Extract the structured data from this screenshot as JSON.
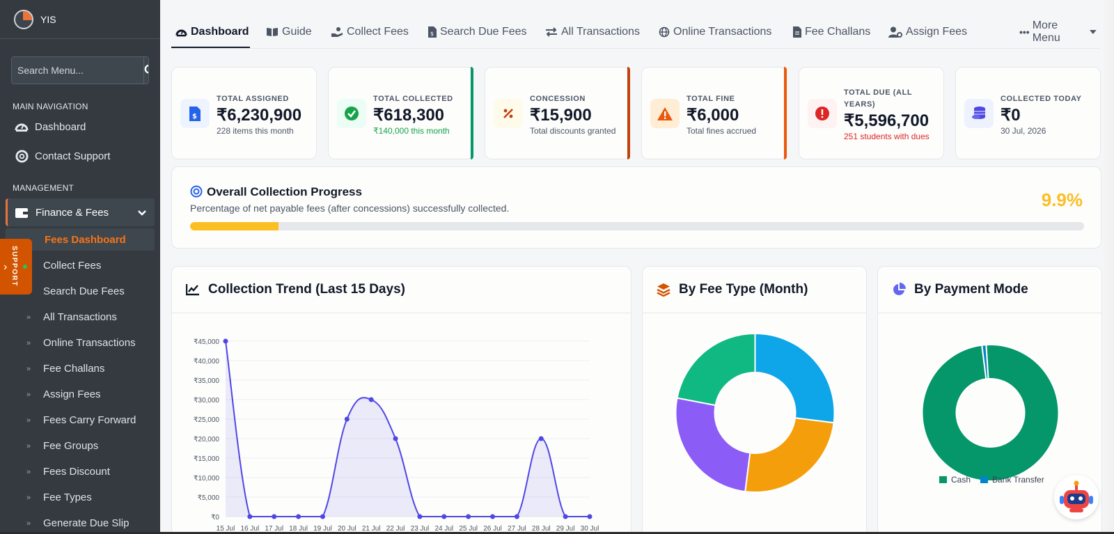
{
  "sidebar": {
    "brand": "YIS",
    "search_placeholder": "Search Menu...",
    "main_header": "MAIN NAVIGATION",
    "main_items": [
      "Dashboard",
      "Contact Support"
    ],
    "management_header": "MANAGEMENT",
    "finance_label": "Finance & Fees",
    "active_sub": "Fees Dashboard",
    "sub_items": [
      "Collect Fees",
      "Search Due Fees",
      "All Transactions",
      "Online Transactions",
      "Fee Challans",
      "Assign Fees",
      "Fees Carry Forward",
      "Fee Groups",
      "Fees Discount",
      "Fee Types",
      "Generate Due Slip"
    ],
    "support_tab": "SUPPORT"
  },
  "topnav": {
    "tabs": [
      "Dashboard",
      "Guide",
      "Collect Fees",
      "Search Due Fees",
      "All Transactions",
      "Online Transactions",
      "Fee Challans",
      "Assign Fees"
    ],
    "more": "More Menu"
  },
  "stats": [
    {
      "label": "TOTAL ASSIGNED",
      "value": "₹6,230,900",
      "sub": "228 items this month",
      "color": "#2563eb"
    },
    {
      "label": "TOTAL COLLECTED",
      "value": "₹618,300",
      "sub": "₹140,000 this month",
      "color": "#16a34a"
    },
    {
      "label": "CONCESSION",
      "value": "₹15,900",
      "sub": "Total discounts granted",
      "color": "#c2410c"
    },
    {
      "label": "TOTAL FINE",
      "value": "₹6,000",
      "sub": "Total fines accrued",
      "color": "#ea580c"
    },
    {
      "label": "TOTAL DUE (ALL YEARS)",
      "value": "₹5,596,700",
      "sub": "251 students with dues",
      "color": "#dc2626"
    },
    {
      "label": "COLLECTED TODAY",
      "value": "₹0",
      "sub": "30 Jul, 2026",
      "color": "#4f46e5"
    }
  ],
  "progress": {
    "title": "Overall Collection Progress",
    "description": "Percentage of net payable fees (after concessions) successfully collected.",
    "percent_label": "9.9%",
    "percent": 9.9
  },
  "panels": {
    "trend_title": "Collection Trend (Last 15 Days)",
    "fee_type_title": "By Fee Type (Month)",
    "payment_title": "By Payment Mode"
  },
  "chart_data": [
    {
      "type": "area",
      "title": "Collection Trend (Last 15 Days)",
      "categories": [
        "15 Jul",
        "16 Jul",
        "17 Jul",
        "18 Jul",
        "19 Jul",
        "20 Jul",
        "21 Jul",
        "22 Jul",
        "23 Jul",
        "24 Jul",
        "25 Jul",
        "26 Jul",
        "27 Jul",
        "28 Jul",
        "29 Jul",
        "30 Jul"
      ],
      "values": [
        45000,
        0,
        0,
        0,
        0,
        25000,
        30000,
        20000,
        0,
        0,
        0,
        0,
        0,
        20000,
        0,
        0
      ],
      "yticks": [
        "₹0",
        "₹5,000",
        "₹10,000",
        "₹15,000",
        "₹20,000",
        "₹25,000",
        "₹30,000",
        "₹35,000",
        "₹40,000",
        "₹45,000"
      ],
      "ylim": [
        0,
        45000
      ],
      "color": "#4f46e5"
    },
    {
      "type": "pie",
      "title": "By Fee Type (Month)",
      "values": [
        27,
        25,
        26,
        22
      ],
      "colors": [
        "#0ea5e9",
        "#f59e0b",
        "#8b5cf6",
        "#10b981"
      ]
    },
    {
      "type": "pie",
      "title": "By Payment Mode",
      "categories": [
        "Cash",
        "Bank Transfer"
      ],
      "values": [
        99,
        1
      ],
      "colors": [
        "#059669",
        "#0284c7"
      ]
    }
  ]
}
